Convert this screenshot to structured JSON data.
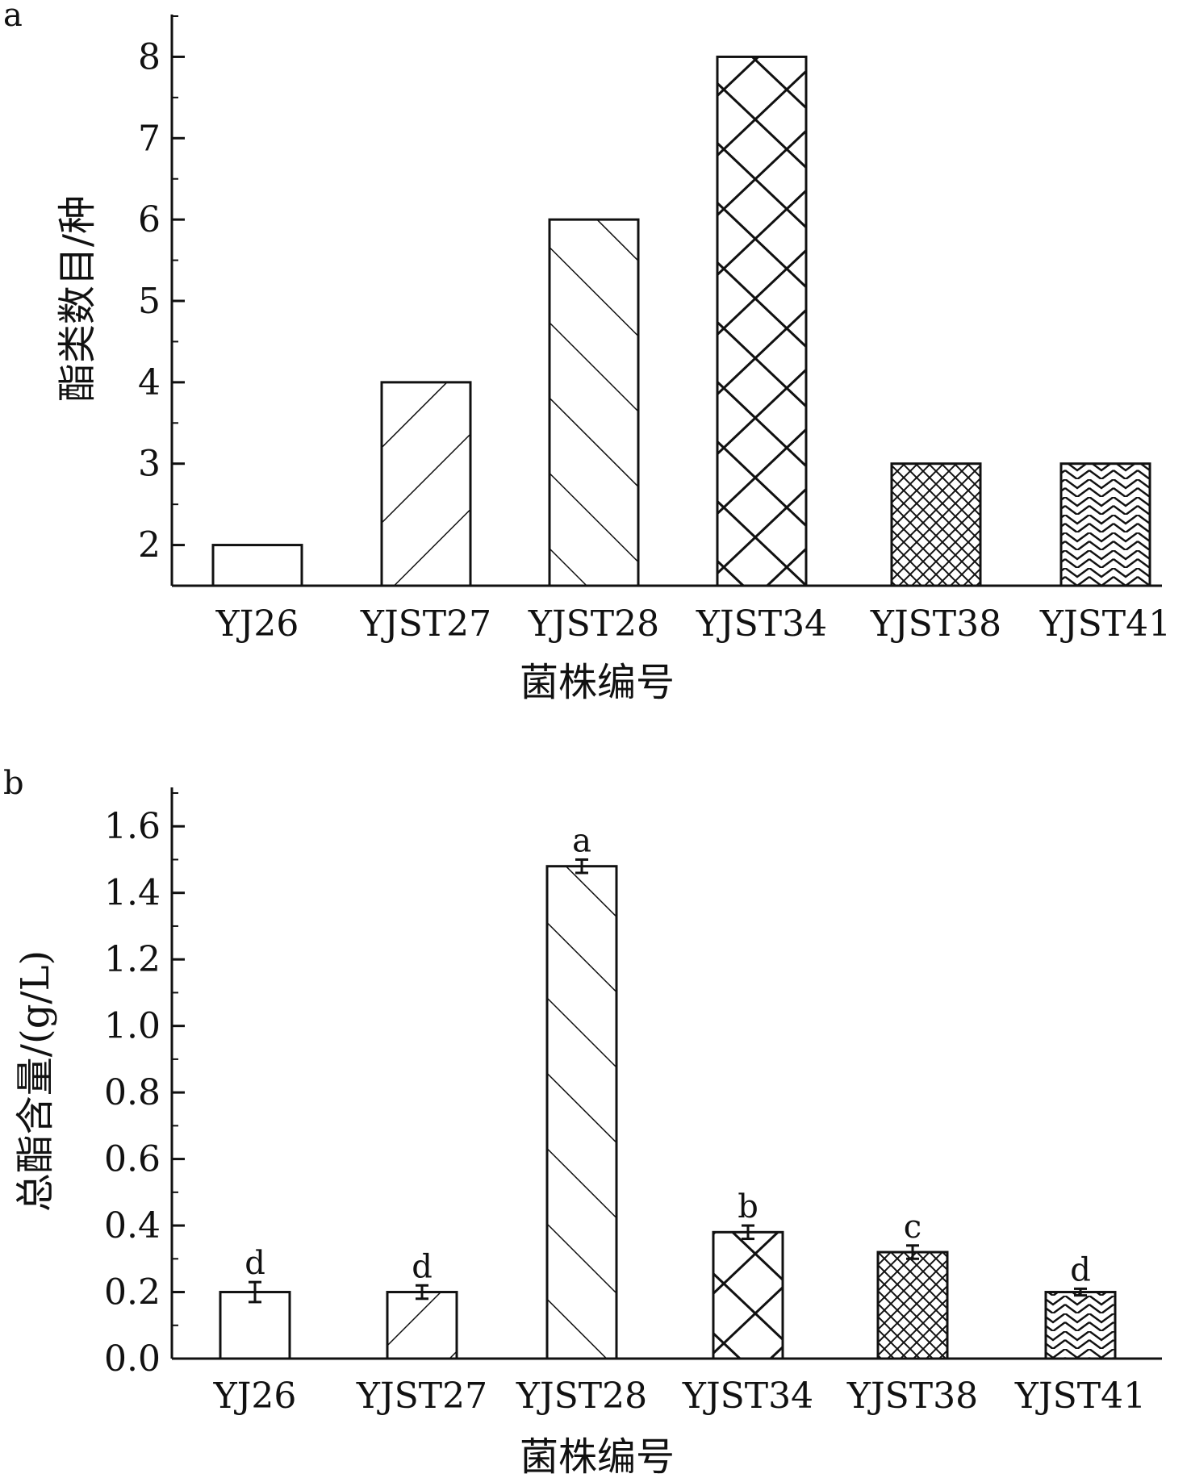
{
  "chart_data": [
    {
      "type": "bar",
      "panel": "a",
      "categories": [
        "YJ26",
        "YJST27",
        "YJST28",
        "YJST34",
        "YJST38",
        "YJST41"
      ],
      "values": [
        2,
        4,
        6,
        8,
        3,
        3
      ],
      "title": "",
      "xlabel": "菌株编号",
      "ylabel": "酯类数目/种",
      "ylim": [
        1.5,
        8.5
      ],
      "yticks": [
        "2",
        "3",
        "4",
        "5",
        "6",
        "7",
        "8"
      ],
      "grid": false
    },
    {
      "type": "bar",
      "panel": "b",
      "categories": [
        "YJ26",
        "YJST27",
        "YJST28",
        "YJST34",
        "YJST38",
        "YJST41"
      ],
      "values": [
        0.2,
        0.2,
        1.48,
        0.38,
        0.32,
        0.2
      ],
      "errors": [
        0.03,
        0.02,
        0.02,
        0.02,
        0.02,
        0.01
      ],
      "significance": [
        "d",
        "d",
        "a",
        "b",
        "c",
        "d"
      ],
      "title": "",
      "xlabel": "菌株编号",
      "ylabel": "总酯含量/(g/L)",
      "ylim": [
        0,
        1.7
      ],
      "yticks": [
        "0.0",
        "0.2",
        "0.4",
        "0.6",
        "0.8",
        "1.0",
        "1.2",
        "1.4",
        "1.6"
      ],
      "grid": false
    }
  ],
  "colors": {
    "ink": "#111111",
    "background": "#ffffff"
  }
}
